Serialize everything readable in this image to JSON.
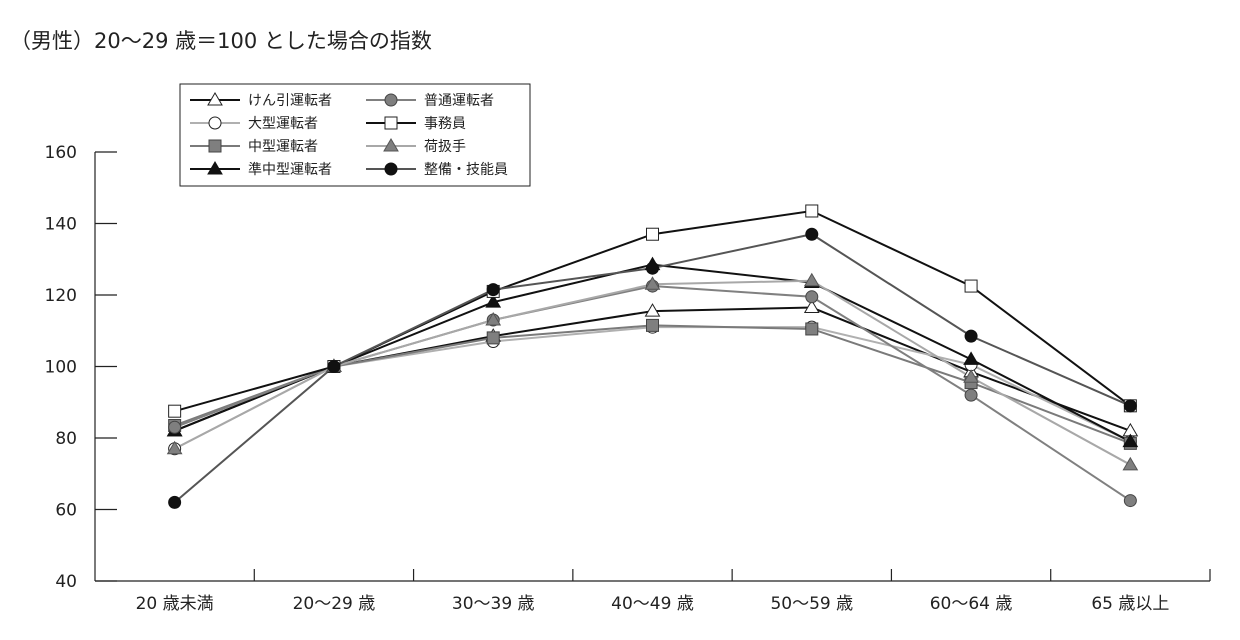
{
  "chart_data": {
    "type": "line",
    "title": "（男性）20〜29 歳＝100 とした場合の指数",
    "xlabel": "",
    "ylabel": "",
    "ylim": [
      40,
      160
    ],
    "yticks": [
      40,
      60,
      80,
      100,
      120,
      140,
      160
    ],
    "categories": [
      "20 歳未満",
      "20〜29 歳",
      "30〜39 歳",
      "40〜49 歳",
      "50〜59 歳",
      "60〜64 歳",
      "65 歳以上"
    ],
    "grid": false,
    "legend_position": "top-left",
    "series": [
      {
        "name": "けん引運転者",
        "marker": "triangle-open",
        "color": "#111111",
        "values": [
          82,
          100,
          108.5,
          115.5,
          116.5,
          98.5,
          82
        ]
      },
      {
        "name": "大型運転者",
        "marker": "circle-open",
        "color": "#b0b0b0",
        "values": [
          77,
          100,
          107,
          111,
          111,
          100.5,
          79
        ]
      },
      {
        "name": "中型運転者",
        "marker": "square-filled",
        "color": "#7a7a7a",
        "values": [
          83.5,
          100,
          108,
          111.5,
          110.5,
          95.5,
          78.5
        ]
      },
      {
        "name": "準中型運転者",
        "marker": "triangle-filled",
        "color": "#111111",
        "values": [
          82,
          100,
          118,
          128.5,
          123.5,
          102,
          79
        ]
      },
      {
        "name": "普通運転者",
        "marker": "circle-filled",
        "color": "#808080",
        "values": [
          83,
          100,
          113,
          122.5,
          119.5,
          92,
          62.5
        ]
      },
      {
        "name": "事務員",
        "marker": "square-open",
        "color": "#111111",
        "values": [
          87.5,
          100,
          121,
          137,
          143.5,
          122.5,
          89
        ]
      },
      {
        "name": "荷扱手",
        "marker": "triangle-gray",
        "color": "#a8a8a8",
        "values": [
          77,
          100,
          113,
          123,
          124,
          97,
          72.5
        ]
      },
      {
        "name": "整備・技能員",
        "marker": "circle-black",
        "color": "#555555",
        "values": [
          62,
          100,
          121.5,
          127.5,
          137,
          108.5,
          89
        ]
      }
    ]
  }
}
